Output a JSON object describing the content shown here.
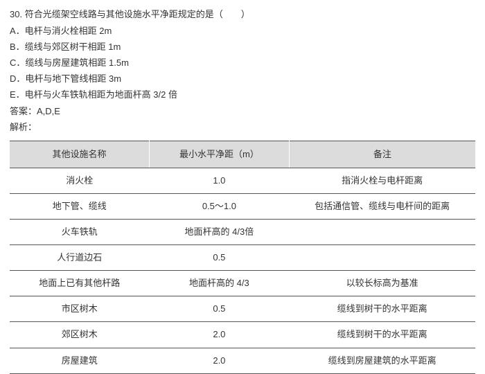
{
  "question": {
    "number": "30.",
    "stem": "符合光缆架空线路与其他设施水平净距规定的是（　　）",
    "options": [
      {
        "label": "A．",
        "text": "电杆与消火栓相距 2m"
      },
      {
        "label": "B．",
        "text": "缆线与郊区树干相距 1m"
      },
      {
        "label": "C．",
        "text": "缆线与房屋建筑相距 1.5m"
      },
      {
        "label": "D．",
        "text": "电杆与地下管线相距 3m"
      },
      {
        "label": "E．",
        "text": "电杆与火车铁轨相距为地面杆高 3/2 倍"
      }
    ],
    "answer_label": "答案：",
    "answer_value": "A,D,E",
    "analysis_label": "解析："
  },
  "table": {
    "headers": [
      "其他设施名称",
      "最小水平净距（m）",
      "备注"
    ],
    "rows": [
      [
        "消火栓",
        "1.0",
        "指消火栓与电杆距离"
      ],
      [
        "地下管、缆线",
        "0.5～1.0",
        "包括通信管、缆线与电杆间的距离"
      ],
      [
        "火车铁轨",
        "地面杆高的 4/3倍",
        ""
      ],
      [
        "人行道边石",
        "0.5",
        ""
      ],
      [
        "地面上已有其他杆路",
        "地面杆高的 4/3",
        "以较长标高为基准"
      ],
      [
        "市区树木",
        "0.5",
        "缆线到树干的水平距离"
      ],
      [
        "郊区树木",
        "2.0",
        "缆线到树干的水平距离"
      ],
      [
        "房屋建筑",
        "2.0",
        "缆线到房屋建筑的水平距离"
      ]
    ]
  }
}
